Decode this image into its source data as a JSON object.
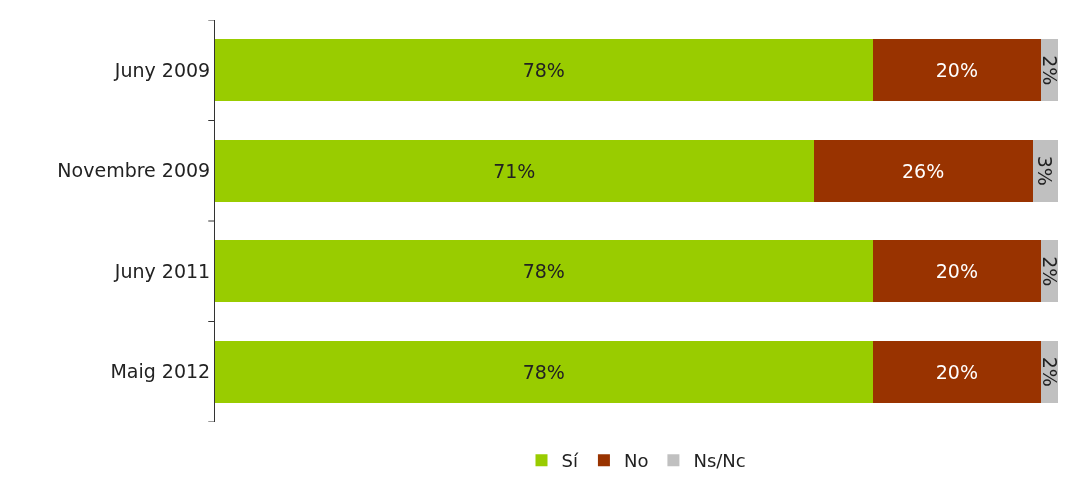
{
  "chart_data": {
    "type": "bar",
    "orientation": "horizontal",
    "stacked": true,
    "categories": [
      "Juny 2009",
      "Novembre 2009",
      "Juny 2011",
      "Maig 2012"
    ],
    "series": [
      {
        "name": "Sí",
        "color": "#99cc00",
        "values": [
          78,
          71,
          78,
          78
        ],
        "value_labels": [
          "78%",
          "71%",
          "78%",
          "78%"
        ]
      },
      {
        "name": "No",
        "color": "#993300",
        "values": [
          20,
          26,
          20,
          20
        ],
        "value_labels": [
          "20%",
          "26%",
          "20%",
          "20%"
        ]
      },
      {
        "name": "Ns/Nc",
        "color": "#c0c0c0",
        "values": [
          2,
          3,
          2,
          2
        ],
        "value_labels": [
          "2%",
          "3%",
          "2%",
          "2%"
        ]
      }
    ],
    "xlim": [
      0,
      100
    ],
    "tick_labels": "y",
    "legend": "bottom"
  }
}
